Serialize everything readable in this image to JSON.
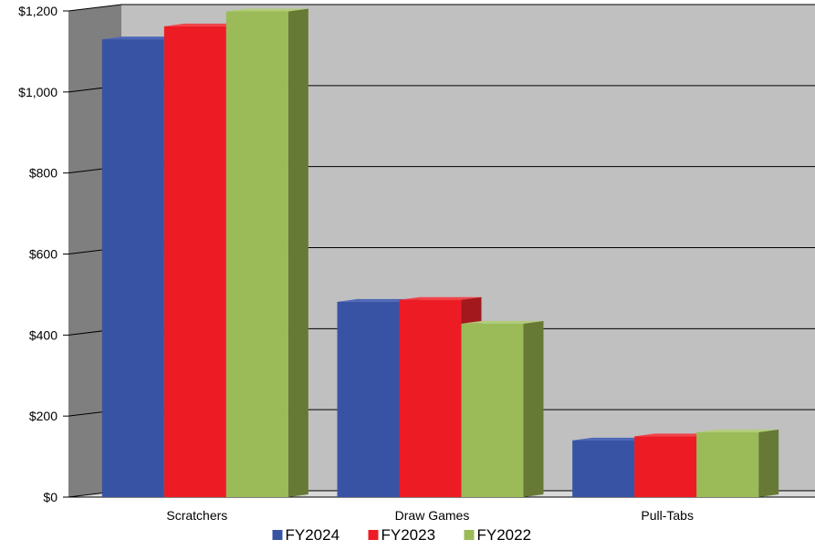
{
  "chart_data": {
    "type": "bar",
    "title": "",
    "xlabel": "",
    "ylabel": "",
    "categories": [
      "Scratchers",
      "Draw Games",
      "Pull-Tabs"
    ],
    "series": [
      {
        "name": "FY2024",
        "values": [
          1130,
          482,
          140
        ],
        "color": "#3953a4",
        "side": "#2b3f80",
        "top": "#4d67b8"
      },
      {
        "name": "FY2023",
        "values": [
          1162,
          487,
          150
        ],
        "color": "#ed1c24",
        "side": "#a3181d",
        "top": "#f2444b"
      },
      {
        "name": "FY2022",
        "values": [
          1199,
          428,
          160
        ],
        "color": "#9bbb59",
        "side": "#667a36",
        "top": "#b2cc78"
      }
    ],
    "yticks": [
      "$0",
      "$200",
      "$400",
      "$600",
      "$800",
      "$1,000",
      "$1,200"
    ],
    "ylim": [
      0,
      1200
    ],
    "grid": true,
    "legend": "bottom",
    "colors": {
      "back_wall": "#c0c0c0",
      "side_wall": "#7f7f7f",
      "floor": "#d9d9d9"
    }
  }
}
